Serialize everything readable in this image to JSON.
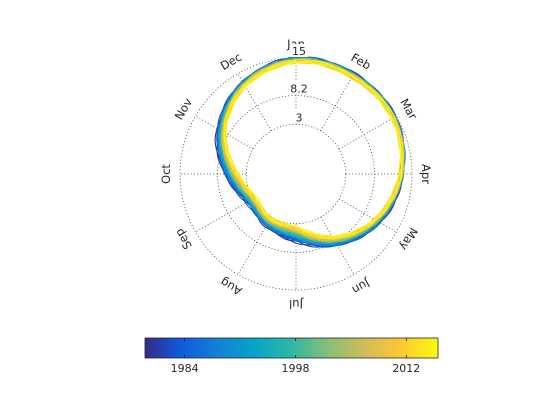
{
  "chart_data": {
    "type": "polar-line",
    "title": "",
    "theta_labels": [
      "Jan",
      "Feb",
      "Mar",
      "Apr",
      "May",
      "Jun",
      "Jul",
      "Aug",
      "Sep",
      "Oct",
      "Nov",
      "Dec"
    ],
    "r_ticks": [
      3,
      8.2,
      15
    ],
    "r_range": [
      -6,
      15
    ],
    "grid": true,
    "series_years": [
      1979,
      2016
    ],
    "series_description": "one closed curve per year, colored by year",
    "representative_values": {
      "early_years": [
        14.9,
        14.9,
        14.6,
        13.2,
        11.4,
        8.9,
        6.2,
        4.8,
        4.3,
        6.8,
        10.3,
        13.2,
        14.9
      ],
      "late_years": [
        14.3,
        14.3,
        14.2,
        12.9,
        10.4,
        7.2,
        3.6,
        3.2,
        2.5,
        4.6,
        8.7,
        12.4,
        14.3
      ]
    },
    "colorbar": {
      "colormap": "parula",
      "range": [
        1979,
        2016
      ],
      "tick_labels": [
        1984,
        1998,
        2012
      ],
      "colors": [
        "#352a87",
        "#0f5cdd",
        "#1481d6",
        "#06a4ca",
        "#2eb7a4",
        "#87bf77",
        "#d1bb59",
        "#fec832",
        "#f9fb0e"
      ]
    }
  }
}
